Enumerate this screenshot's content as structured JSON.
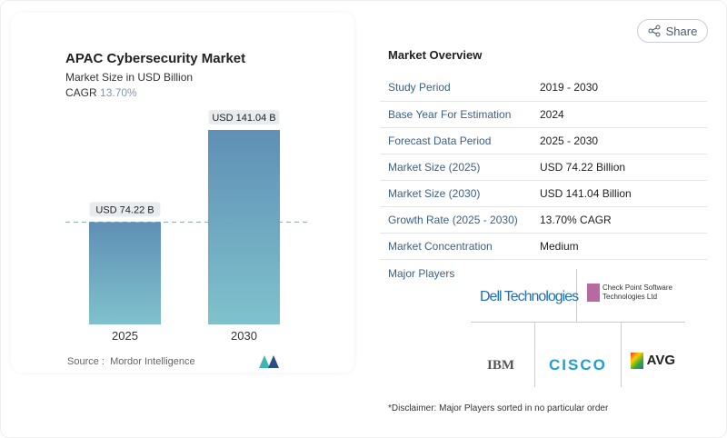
{
  "header": {
    "share_label": "Share",
    "share_icon": "share-icon"
  },
  "chart_data": {
    "type": "bar",
    "title": "APAC Cybersecurity Market",
    "subtitle": "Market Size in USD Billion",
    "cagr_label": "CAGR",
    "cagr_value": "13.70%",
    "categories": [
      "2025",
      "2030"
    ],
    "values": [
      74.22,
      141.04
    ],
    "data_labels": [
      "USD 74.22 B",
      "USD 141.04 B"
    ],
    "ylim": [
      0,
      141.04
    ],
    "reference_line": 74.22,
    "colors": {
      "bar_top": "#5f8fb5",
      "bar_bottom": "#7fc2cc",
      "cagr": "#7a97b4"
    }
  },
  "source": {
    "label": "Source :",
    "value": "Mordor Intelligence"
  },
  "overview": {
    "title": "Market Overview",
    "rows": [
      {
        "key": "Study Period",
        "value": "2019 - 2030"
      },
      {
        "key": "Base Year For Estimation",
        "value": "2024"
      },
      {
        "key": "Forecast Data Period",
        "value": "2025 - 2030"
      },
      {
        "key": "Market Size (2025)",
        "value": "USD 74.22 Billion"
      },
      {
        "key": "Market Size (2030)",
        "value": "USD 141.04 Billion"
      },
      {
        "key": "Growth Rate (2025 - 2030)",
        "value": "13.70% CAGR"
      },
      {
        "key": "Market Concentration",
        "value": "Medium"
      }
    ],
    "major_players_label": "Major Players",
    "players": [
      "Dell Technologies",
      "Check Point Software Technologies Ltd",
      "IBM",
      "Cisco",
      "AVG"
    ]
  },
  "disclaimer": "*Disclaimer: Major Players sorted in no particular order"
}
